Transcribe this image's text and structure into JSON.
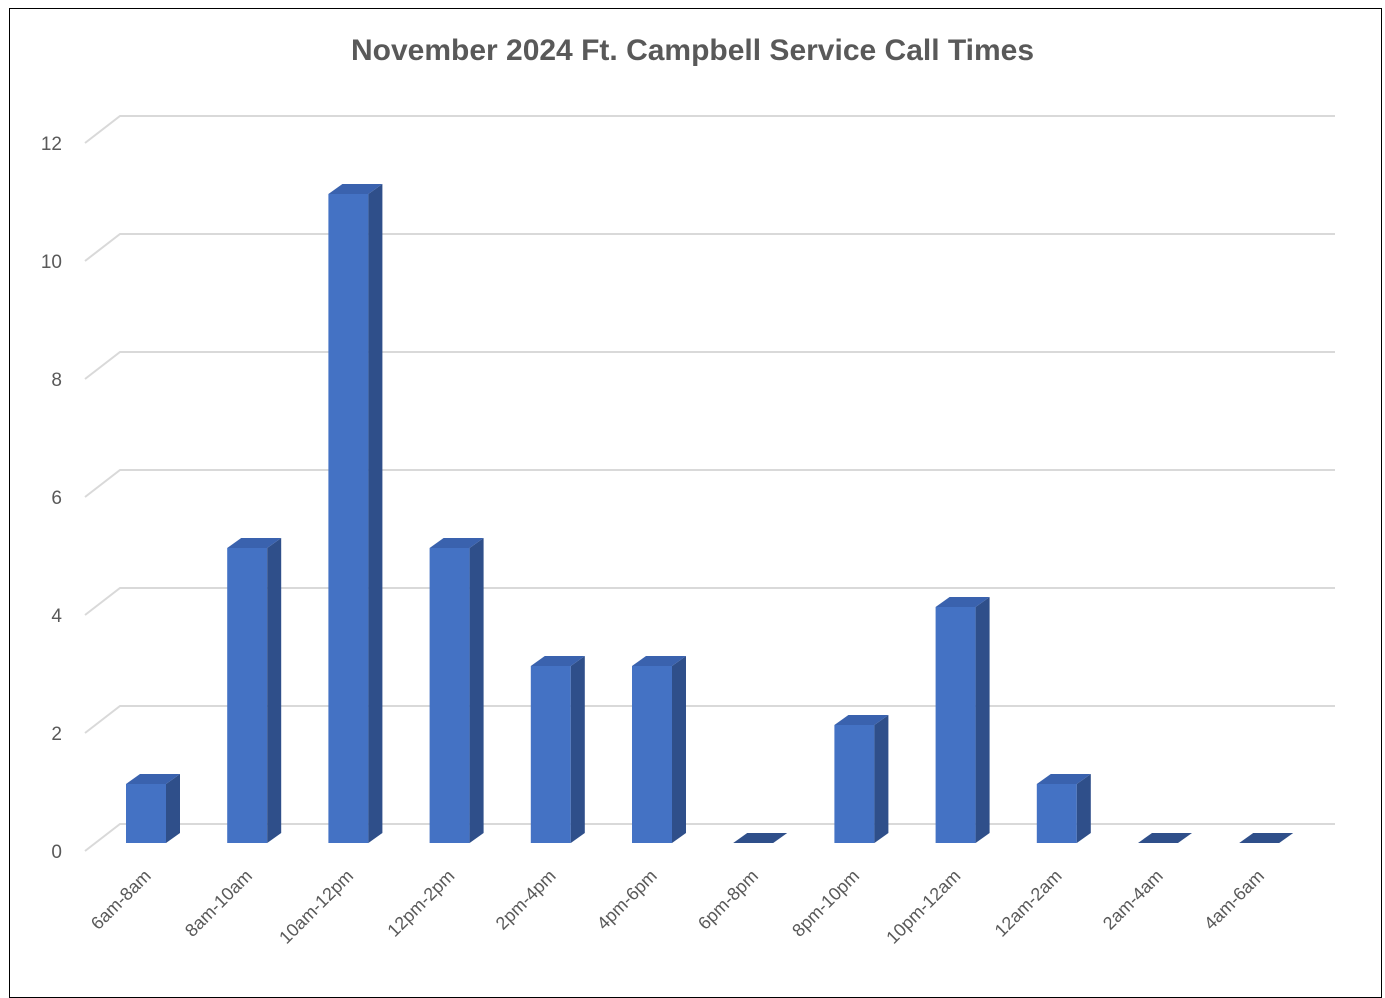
{
  "chart_data": {
    "type": "bar",
    "title": "November 2024 Ft. Campbell Service Call Times",
    "categories": [
      "6am-8am",
      "8am-10am",
      "10am-12pm",
      "12pm-2pm",
      "2pm-4pm",
      "4pm-6pm",
      "6pm-8pm",
      "8pm-10pm",
      "10pm-12am",
      "12am-2am",
      "2am-4am",
      "4am-6am"
    ],
    "values": [
      1,
      5,
      11,
      5,
      3,
      3,
      0,
      2,
      4,
      1,
      0,
      0
    ],
    "xlabel": "",
    "ylabel": "",
    "ylim": [
      0,
      12
    ],
    "yticks": [
      0,
      2,
      4,
      6,
      8,
      10,
      12
    ],
    "grid": true,
    "legend": "none",
    "style": "3d-column",
    "colors": {
      "bar_front": "#4472C4",
      "bar_side": "#2F4F8A",
      "bar_top": "#3A62AE",
      "grid": "#D9D9D9",
      "text": "#595959"
    }
  }
}
